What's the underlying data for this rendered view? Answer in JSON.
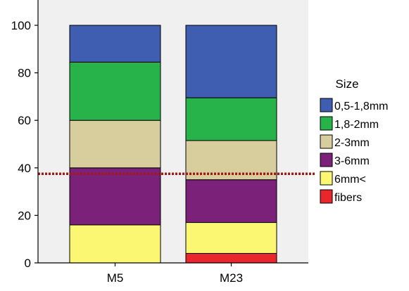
{
  "chart_data": {
    "type": "bar",
    "stacked": true,
    "categories": [
      "M5",
      "M23"
    ],
    "ylim": [
      0,
      100
    ],
    "yticks": [
      "0",
      "20",
      "40",
      "60",
      "80",
      "100"
    ],
    "series": [
      {
        "name": "fibers",
        "color": "#e8262c",
        "values": [
          0,
          4
        ]
      },
      {
        "name": "6mm<",
        "color": "#fbf772",
        "values": [
          16,
          13
        ]
      },
      {
        "name": "3-6mm",
        "color": "#7b2179",
        "values": [
          24,
          18
        ]
      },
      {
        "name": "2-3mm",
        "color": "#d8cd9d",
        "values": [
          20,
          16.5
        ]
      },
      {
        "name": "1,8-2mm",
        "color": "#27b34a",
        "values": [
          24.5,
          18
        ]
      },
      {
        "name": "0,5-1,8mm",
        "color": "#3f5db1",
        "values": [
          15.5,
          30.5
        ]
      }
    ],
    "legend_title": "Size",
    "legend_order": [
      "0,5-1,8mm",
      "1,8-2mm",
      "2-3mm",
      "3-6mm",
      "6mm<",
      "fibers"
    ],
    "reference_line": {
      "y": 37.5,
      "color": "#a11a1a",
      "style": "dotted"
    },
    "legend_position": "right",
    "plot_background": "#f0f0f0"
  }
}
